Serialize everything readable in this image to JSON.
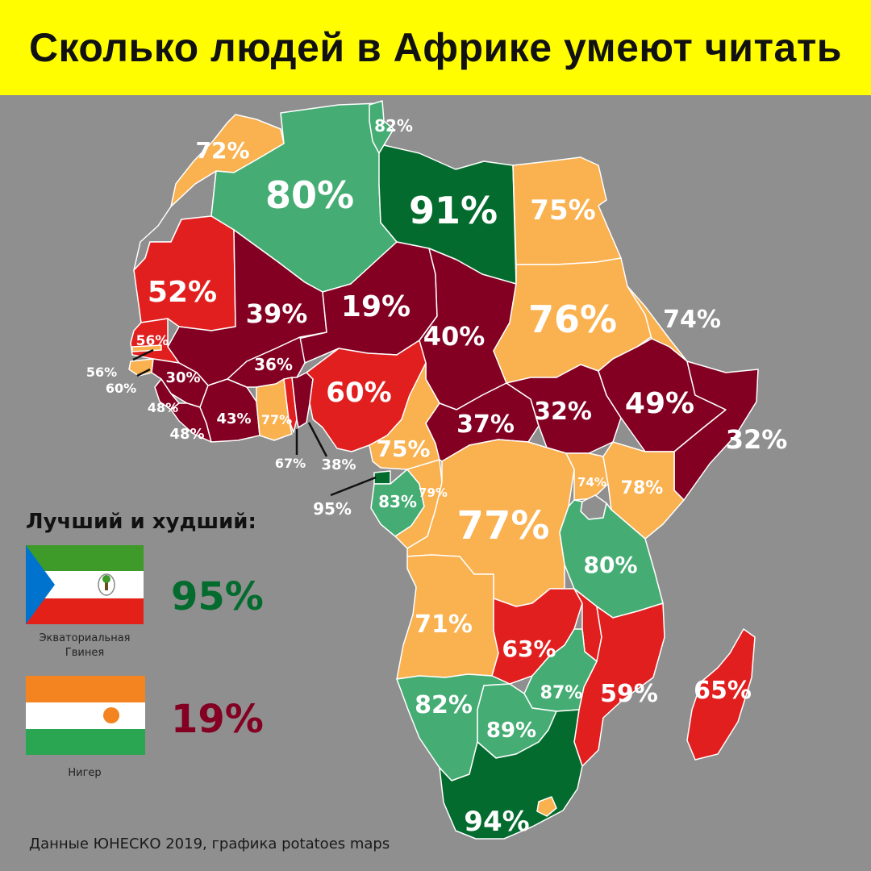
{
  "title": "Сколько людей в Африке умеют читать",
  "colors": {
    "best": "#046b2e",
    "good": "#45ad74",
    "medium": "#fab14f",
    "low": "#e21f1f",
    "worst": "#830023",
    "background": "#8f8f8f",
    "header": "#fffd00"
  },
  "countries": [
    {
      "id": "morocco",
      "literacy": "72%"
    },
    {
      "id": "algeria",
      "literacy": "80%"
    },
    {
      "id": "tunisia",
      "literacy": "82%"
    },
    {
      "id": "libya",
      "literacy": "91%"
    },
    {
      "id": "egypt",
      "literacy": "75%"
    },
    {
      "id": "mauritania",
      "literacy": "52%"
    },
    {
      "id": "mali",
      "literacy": "39%"
    },
    {
      "id": "niger",
      "literacy": "19%"
    },
    {
      "id": "chad",
      "literacy": "40%"
    },
    {
      "id": "sudan",
      "literacy": "76%"
    },
    {
      "id": "eritrea",
      "literacy": "74%"
    },
    {
      "id": "senegal",
      "literacy": "56%"
    },
    {
      "id": "gambia",
      "literacy": "56%"
    },
    {
      "id": "guinea-bissau",
      "literacy": "60%"
    },
    {
      "id": "guinea",
      "literacy": "30%"
    },
    {
      "id": "sierra-leone",
      "literacy": "48%"
    },
    {
      "id": "liberia",
      "literacy": "48%"
    },
    {
      "id": "burkina-faso",
      "literacy": "36%"
    },
    {
      "id": "ivory-coast",
      "literacy": "43%"
    },
    {
      "id": "ghana",
      "literacy": "77%"
    },
    {
      "id": "togo",
      "literacy": "67%"
    },
    {
      "id": "benin",
      "literacy": "38%"
    },
    {
      "id": "nigeria",
      "literacy": "60%"
    },
    {
      "id": "cameroon",
      "literacy": "75%"
    },
    {
      "id": "central-african-republic",
      "literacy": "37%"
    },
    {
      "id": "south-sudan",
      "literacy": "32%"
    },
    {
      "id": "ethiopia",
      "literacy": "49%"
    },
    {
      "id": "somalia",
      "literacy": "32%"
    },
    {
      "id": "equatorial-guinea",
      "literacy": "95%"
    },
    {
      "id": "gabon",
      "literacy": "83%"
    },
    {
      "id": "congo",
      "literacy": "79%"
    },
    {
      "id": "dr-congo",
      "literacy": "77%"
    },
    {
      "id": "uganda",
      "literacy": "74%"
    },
    {
      "id": "kenya",
      "literacy": "78%"
    },
    {
      "id": "tanzania",
      "literacy": "80%"
    },
    {
      "id": "angola",
      "literacy": "71%"
    },
    {
      "id": "zambia",
      "literacy": "63%"
    },
    {
      "id": "mozambique",
      "literacy": "59%"
    },
    {
      "id": "madagascar",
      "literacy": "65%"
    },
    {
      "id": "namibia",
      "literacy": "82%"
    },
    {
      "id": "botswana",
      "literacy": "89%"
    },
    {
      "id": "zimbabwe",
      "literacy": "87%"
    },
    {
      "id": "south-africa",
      "literacy": "94%"
    }
  ],
  "sidebar": {
    "heading": "Лучший и худший:",
    "best": {
      "country": "Экваториальная Гвинея",
      "value": "95%"
    },
    "worst": {
      "country": "Нигер",
      "value": "19%"
    }
  },
  "source": "Данные ЮНЕСКО 2019, графика potatoes maps"
}
